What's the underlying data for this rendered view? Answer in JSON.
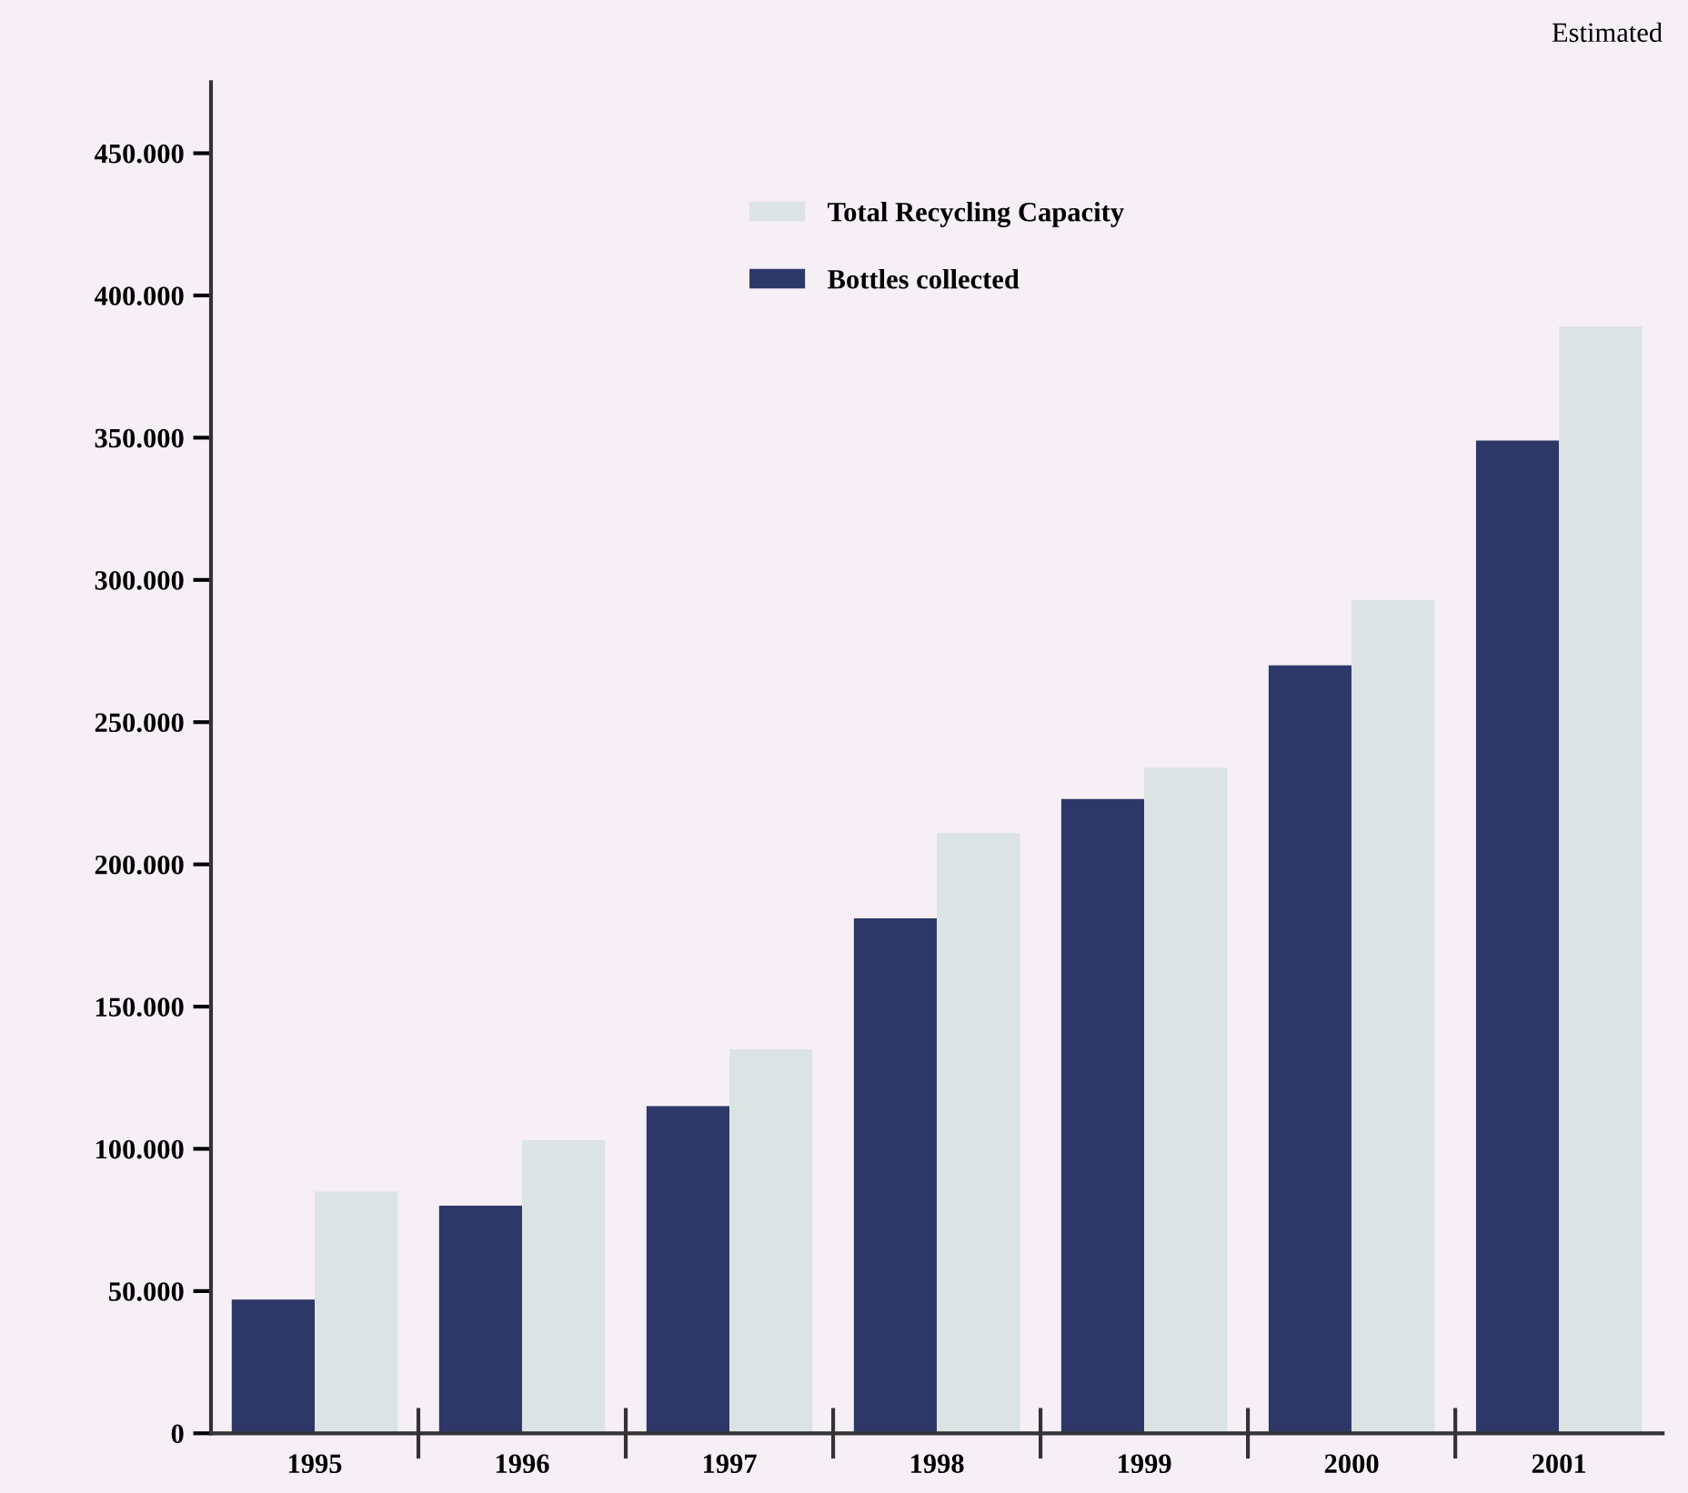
{
  "chart_data": {
    "type": "bar",
    "categories": [
      "1995",
      "1996",
      "1997",
      "1998",
      "1999",
      "2000",
      "2001"
    ],
    "series": [
      {
        "name": "Bottles collected",
        "color": "#2e3868",
        "values": [
          47000,
          80000,
          115000,
          181000,
          223000,
          270000,
          349000
        ]
      },
      {
        "name": "Total Recycling Capacity",
        "color": "#dce3e3",
        "values": [
          85000,
          103000,
          135000,
          211000,
          234000,
          293000,
          389000
        ]
      }
    ],
    "ylim": [
      0,
      475000
    ],
    "yticks": [
      {
        "value": 0,
        "label": "0"
      },
      {
        "value": 50000,
        "label": "50.000"
      },
      {
        "value": 100000,
        "label": "100.000"
      },
      {
        "value": 150000,
        "label": "150.000"
      },
      {
        "value": 200000,
        "label": "200.000"
      },
      {
        "value": 250000,
        "label": "250.000"
      },
      {
        "value": 300000,
        "label": "300.000"
      },
      {
        "value": 350000,
        "label": "350.000"
      },
      {
        "value": 400000,
        "label": "400.000"
      },
      {
        "value": 450000,
        "label": "450.000"
      }
    ],
    "annotations": [
      "Estimated"
    ],
    "legend": "top",
    "grid": false
  }
}
